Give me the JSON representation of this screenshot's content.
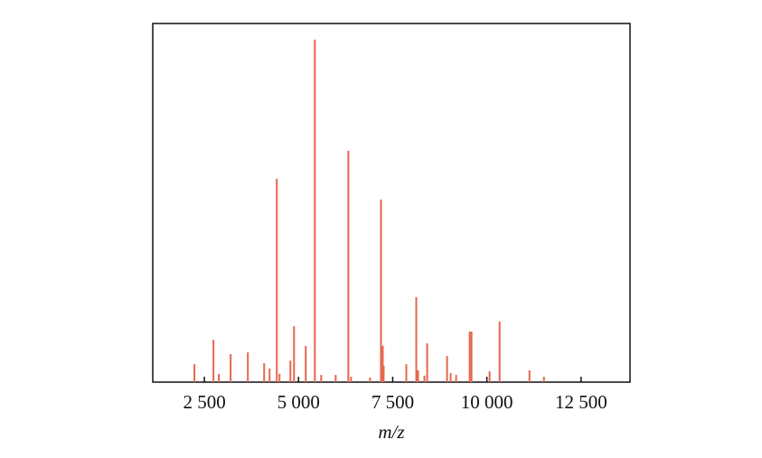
{
  "chart_data": {
    "type": "stem",
    "xlabel": "m/z",
    "color": "#e5674f",
    "x": [
      2236,
      2741,
      2885,
      3197,
      3654,
      4087,
      4231,
      4423,
      4495,
      4784,
      4880,
      5192,
      5433,
      5601,
      5986,
      6322,
      6394,
      6899,
      7188,
      7236,
      7260,
      7861,
      8125,
      8173,
      8342,
      8414,
      8943,
      9039,
      9183,
      9544,
      9592,
      10072,
      10337,
      11130,
      11514
    ],
    "values": [
      5.0,
      11.8,
      2.3,
      7.8,
      8.3,
      5.3,
      3.8,
      56.7,
      2.3,
      6.0,
      15.6,
      10.1,
      95.5,
      2.0,
      2.0,
      64.5,
      1.5,
      1.3,
      50.9,
      10.1,
      4.5,
      5.0,
      23.7,
      3.3,
      1.8,
      10.8,
      7.3,
      2.5,
      2.0,
      14.1,
      14.1,
      3.0,
      16.9,
      3.3,
      1.5
    ],
    "xlim": [
      1130,
      13800
    ],
    "ylim": [
      0,
      100
    ],
    "xticks": [
      {
        "value": 2500,
        "label": "2 500"
      },
      {
        "value": 5000,
        "label": "5 000"
      },
      {
        "value": 7500,
        "label": "7 500"
      },
      {
        "value": 10000,
        "label": "10 000"
      },
      {
        "value": 12500,
        "label": "12 500"
      }
    ]
  }
}
